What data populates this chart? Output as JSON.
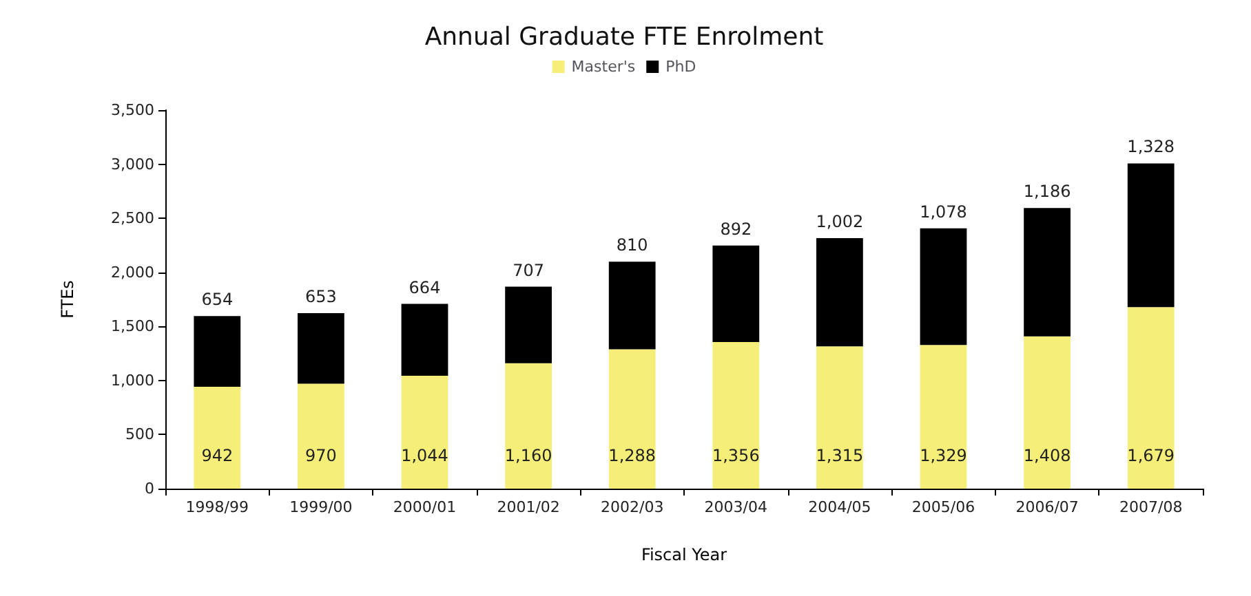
{
  "chart_data": {
    "type": "bar",
    "title": "Annual Graduate FTE Enrolment",
    "xlabel": "Fiscal Year",
    "ylabel": "FTEs",
    "categories": [
      "1998/99",
      "1999/00",
      "2000/01",
      "2001/02",
      "2002/03",
      "2003/04",
      "2004/05",
      "2005/06",
      "2006/07",
      "2007/08"
    ],
    "series": [
      {
        "name": "Master's",
        "color": "#f5ef7a",
        "values": [
          942,
          970,
          1044,
          1160,
          1288,
          1356,
          1315,
          1329,
          1408,
          1679
        ],
        "value_labels": [
          "942",
          "970",
          "1,044",
          "1,160",
          "1,288",
          "1,356",
          "1,315",
          "1,329",
          "1,408",
          "1,679"
        ]
      },
      {
        "name": "PhD",
        "color": "#000000",
        "values": [
          654,
          653,
          664,
          707,
          810,
          892,
          1002,
          1078,
          1186,
          1328
        ],
        "value_labels": [
          "654",
          "653",
          "664",
          "707",
          "810",
          "892",
          "1,002",
          "1,078",
          "1,186",
          "1,328"
        ]
      }
    ],
    "stacked": true,
    "legend": "top",
    "grid": false,
    "ylim": [
      0,
      3500
    ],
    "yticks": [
      0,
      500,
      {
        "value": 1000,
        "label": "1,000"
      },
      {
        "value": 1500,
        "label": "1,500"
      },
      {
        "value": 2000,
        "label": "2,000"
      },
      {
        "value": 2500,
        "label": "2,500"
      },
      {
        "value": 3000,
        "label": "3,000"
      },
      {
        "value": 3500,
        "label": "3,500"
      }
    ]
  }
}
